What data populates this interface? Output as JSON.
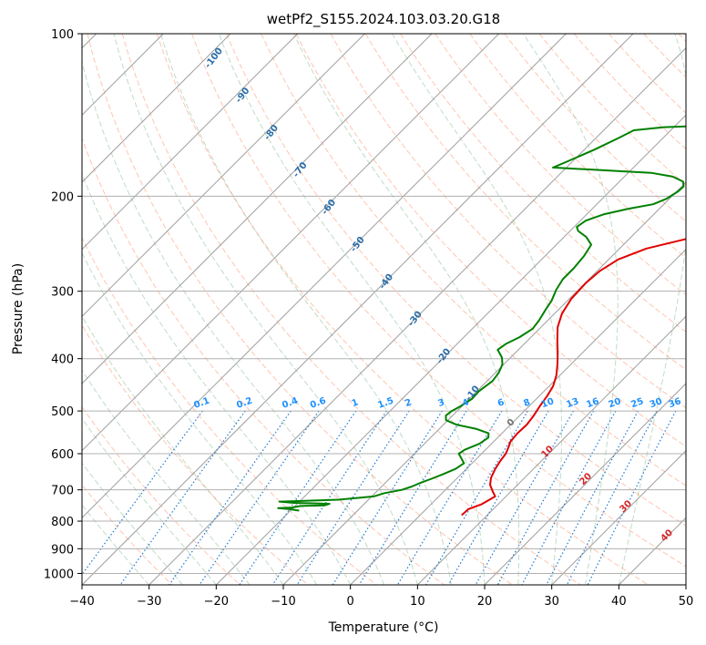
{
  "chart_data": {
    "type": "line",
    "title": "wetPf2_S155.2024.103.03.20.G18",
    "xlabel": "Temperature (°C)",
    "ylabel": "Pressure (hPa)",
    "xlim": [
      -40,
      50
    ],
    "ylim": [
      1050,
      100
    ],
    "y_scale": "log",
    "grid": true,
    "x_ticks": [
      "−40",
      "−30",
      "−20",
      "−10",
      "0",
      "10",
      "20",
      "30",
      "40",
      "50"
    ],
    "y_ticks": [
      "100",
      "200",
      "300",
      "400",
      "500",
      "600",
      "700",
      "800",
      "900",
      "1000"
    ],
    "dry_adiabat_labels": [
      "-100",
      "-90",
      "-80",
      "-70",
      "-60",
      "-50",
      "-40",
      "-30",
      "-20",
      "-10"
    ],
    "mixing_ratio_labels": [
      "0.1",
      "0.2",
      "0.4",
      "0.6",
      "1",
      "1.5",
      "2",
      "3",
      "4",
      "6",
      "8",
      "10",
      "13",
      "16",
      "20",
      "25",
      "30",
      "36"
    ],
    "moist_adiabat_labels": [
      "0",
      "10",
      "20",
      "30",
      "40"
    ],
    "series": [
      {
        "color": "#e00000",
        "points": [
          [
            6.2,
            780
          ],
          [
            6.3,
            760
          ],
          [
            7.5,
            745
          ],
          [
            8.4,
            720
          ],
          [
            7.3,
            705
          ],
          [
            5.9,
            685
          ],
          [
            5.0,
            665
          ],
          [
            4.3,
            640
          ],
          [
            3.9,
            620
          ],
          [
            3.6,
            600
          ],
          [
            3.1,
            585
          ],
          [
            2.5,
            570
          ],
          [
            2.3,
            550
          ],
          [
            2.4,
            530
          ],
          [
            2.1,
            510
          ],
          [
            1.6,
            490
          ],
          [
            1.2,
            470
          ],
          [
            0.6,
            450
          ],
          [
            -0.5,
            430
          ],
          [
            -2.0,
            410
          ],
          [
            -3.7,
            390
          ],
          [
            -5.6,
            370
          ],
          [
            -7.5,
            350
          ],
          [
            -8.9,
            330
          ],
          [
            -9.7,
            310
          ],
          [
            -9.9,
            290
          ],
          [
            -9.6,
            275
          ],
          [
            -8.6,
            262
          ],
          [
            -6.0,
            250
          ],
          [
            -1.5,
            240
          ],
          [
            3.2,
            232
          ],
          [
            6.3,
            225
          ],
          [
            8.6,
            217
          ],
          [
            10.0,
            208
          ],
          [
            11.0,
            199
          ],
          [
            12.3,
            190
          ],
          [
            13.4,
            182
          ],
          [
            14.6,
            176
          ],
          [
            15.6,
            169
          ],
          [
            16.6,
            160
          ],
          [
            17.5,
            152
          ],
          [
            18.5,
            143
          ],
          [
            19.4,
            135
          ],
          [
            20.2,
            127
          ],
          [
            21.1,
            120
          ],
          [
            21.7,
            115
          ],
          [
            22.0,
            112
          ],
          [
            22.4,
            107
          ],
          [
            22.9,
            103
          ],
          [
            23.1,
            100
          ]
        ]
      },
      {
        "color": "#008000",
        "points": [
          [
            -18.7,
            765
          ],
          [
            -20.5,
            760
          ],
          [
            -22.2,
            757
          ],
          [
            -20.2,
            755
          ],
          [
            -19.2,
            750
          ],
          [
            -15.7,
            748
          ],
          [
            -15.2,
            743
          ],
          [
            -20.6,
            740
          ],
          [
            -23.0,
            736
          ],
          [
            -21.3,
            735
          ],
          [
            -14.5,
            730
          ],
          [
            -9.7,
            720
          ],
          [
            -8.6,
            710
          ],
          [
            -6.5,
            700
          ],
          [
            -5.5,
            690
          ],
          [
            -4.8,
            680
          ],
          [
            -3.5,
            665
          ],
          [
            -2.7,
            655
          ],
          [
            -1.6,
            640
          ],
          [
            -1.2,
            625
          ],
          [
            -2.5,
            610
          ],
          [
            -3.4,
            600
          ],
          [
            -3.1,
            590
          ],
          [
            -1.8,
            575
          ],
          [
            -1.4,
            560
          ],
          [
            -2.0,
            550
          ],
          [
            -4.4,
            540
          ],
          [
            -8.1,
            530
          ],
          [
            -10.3,
            520
          ],
          [
            -11.0,
            510
          ],
          [
            -10.8,
            500
          ],
          [
            -10.2,
            490
          ],
          [
            -9.6,
            475
          ],
          [
            -9.7,
            460
          ],
          [
            -9.2,
            440
          ],
          [
            -9.5,
            425
          ],
          [
            -10.2,
            410
          ],
          [
            -11.3,
            398
          ],
          [
            -13.1,
            385
          ],
          [
            -12.7,
            375
          ],
          [
            -11.7,
            365
          ],
          [
            -11.0,
            352
          ],
          [
            -11.3,
            340
          ],
          [
            -11.9,
            325
          ],
          [
            -12.4,
            312
          ],
          [
            -13.3,
            298
          ],
          [
            -13.9,
            285
          ],
          [
            -13.9,
            272
          ],
          [
            -14.2,
            258
          ],
          [
            -14.8,
            246
          ],
          [
            -16.7,
            238
          ],
          [
            -18.8,
            232
          ],
          [
            -19.6,
            228
          ],
          [
            -19.2,
            222
          ],
          [
            -17.4,
            216
          ],
          [
            -14.6,
            211
          ],
          [
            -11.6,
            207
          ],
          [
            -10.4,
            202
          ],
          [
            -9.8,
            196
          ],
          [
            -9.7,
            192
          ],
          [
            -10.5,
            188
          ],
          [
            -12.8,
            184
          ],
          [
            -16.6,
            181
          ],
          [
            -32.0,
            177
          ],
          [
            -30.9,
            173
          ],
          [
            -28.5,
            164
          ],
          [
            -26.6,
            156
          ],
          [
            -25.5,
            151
          ],
          [
            -21.5,
            149
          ],
          [
            -15.5,
            148
          ],
          [
            -13.3,
            147
          ],
          [
            -11.5,
            145
          ],
          [
            -10.2,
            141
          ],
          [
            -9.3,
            135
          ],
          [
            -9.5,
            128
          ],
          [
            -9.4,
            122
          ],
          [
            -8.7,
            117
          ],
          [
            -7.6,
            113
          ],
          [
            -6.8,
            110
          ],
          [
            -5.6,
            107
          ],
          [
            -4.5,
            104
          ],
          [
            -1.9,
            100
          ]
        ]
      }
    ]
  }
}
